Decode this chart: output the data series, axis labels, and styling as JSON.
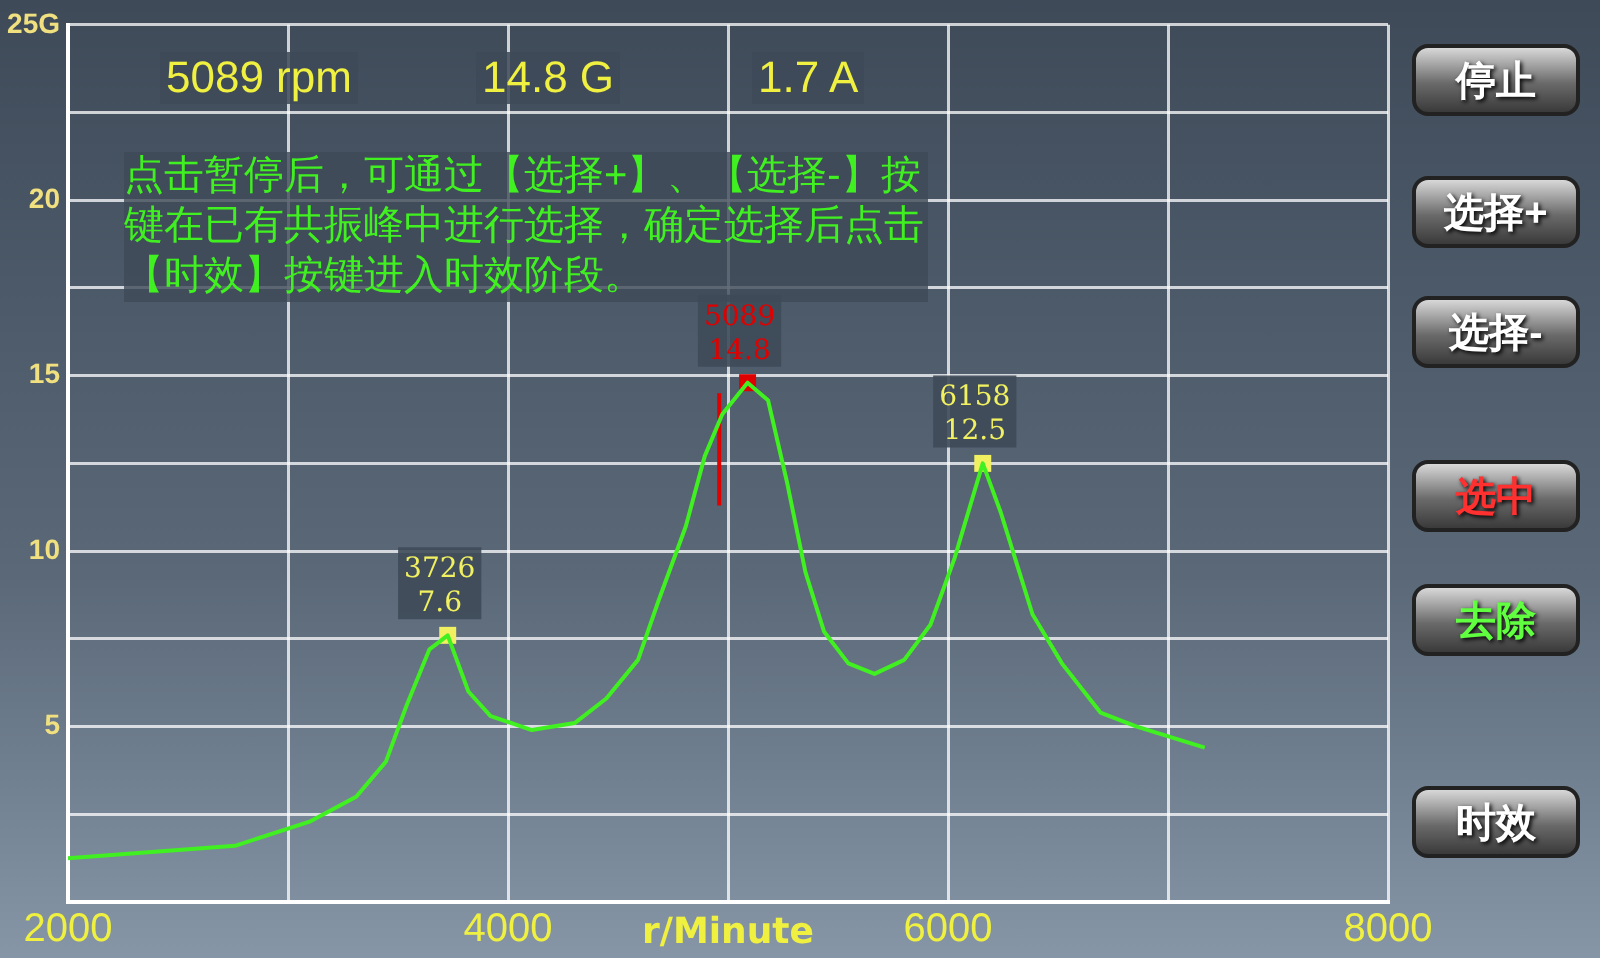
{
  "chart_data": {
    "type": "line",
    "xlabel": "r/Minute",
    "annotations": [
      "5089 rpm",
      "14.8 G",
      "1.7 A",
      "点击暂停后，可通过【选择+】、【选择-】按键在已有共振峰中进行选择，确定选择后点击【时效】按键进入时效阶段。",
      "停止",
      "选择+",
      "选择-",
      "选中",
      "去除",
      "时效"
    ],
    "series": [
      {
        "type": "line",
        "color": "#40f020",
        "marker": "none",
        "x": [
          2000,
          2759,
          3102,
          3310,
          3445,
          3539,
          3643,
          3726,
          3820,
          3921,
          4108,
          4303,
          4447,
          4591,
          4685,
          4808,
          4894,
          4974,
          5089,
          5182,
          5267,
          5352,
          5437,
          5547,
          5666,
          5801,
          5920,
          6030,
          6158,
          6240,
          6384,
          6518,
          6693,
          6858,
          7167
        ],
        "values": [
          1.25,
          1.6,
          2.3,
          3.0,
          4.0,
          5.6,
          7.2,
          7.6,
          6.0,
          5.3,
          4.9,
          5.1,
          5.8,
          6.9,
          8.6,
          10.7,
          12.7,
          13.9,
          14.8,
          14.3,
          12.0,
          9.4,
          7.7,
          6.8,
          6.5,
          6.9,
          7.9,
          9.8,
          12.5,
          11.1,
          8.2,
          6.8,
          5.4,
          5.0,
          4.4
        ]
      },
      {
        "type": "line",
        "color": "#e00000",
        "marker": "none",
        "x": [
          4960,
          4960
        ],
        "values": [
          11.3,
          14.5
        ]
      },
      {
        "type": "scatter",
        "colors": [
          "#f0f060",
          "#e00000",
          "#f0f060"
        ],
        "marker": "square",
        "x": [
          3726,
          5089,
          6158
        ],
        "values": [
          7.6,
          14.8,
          12.5
        ],
        "value_labels": [
          "3726\n7.6",
          "5089\n14.8",
          "6158\n12.5"
        ]
      }
    ],
    "xlim": [
      2000,
      8000
    ],
    "xticks": [
      2000,
      {
        "value": 3000,
        "label": null
      },
      4000,
      {
        "value": 5000,
        "label": null
      },
      6000,
      {
        "value": 7000,
        "label": null
      },
      8000
    ],
    "ylim": [
      0,
      25
    ],
    "yticks": [
      {
        "value": 0,
        "label": null
      },
      {
        "value": 2.5,
        "label": null
      },
      5,
      {
        "value": 7.5,
        "label": null
      },
      10,
      {
        "value": 12.5,
        "label": null
      },
      15,
      {
        "value": 17.5,
        "label": null
      },
      20,
      {
        "value": 22.5,
        "label": null
      },
      {
        "value": 25,
        "label": "25G"
      }
    ],
    "grid": true,
    "legend": false
  }
}
